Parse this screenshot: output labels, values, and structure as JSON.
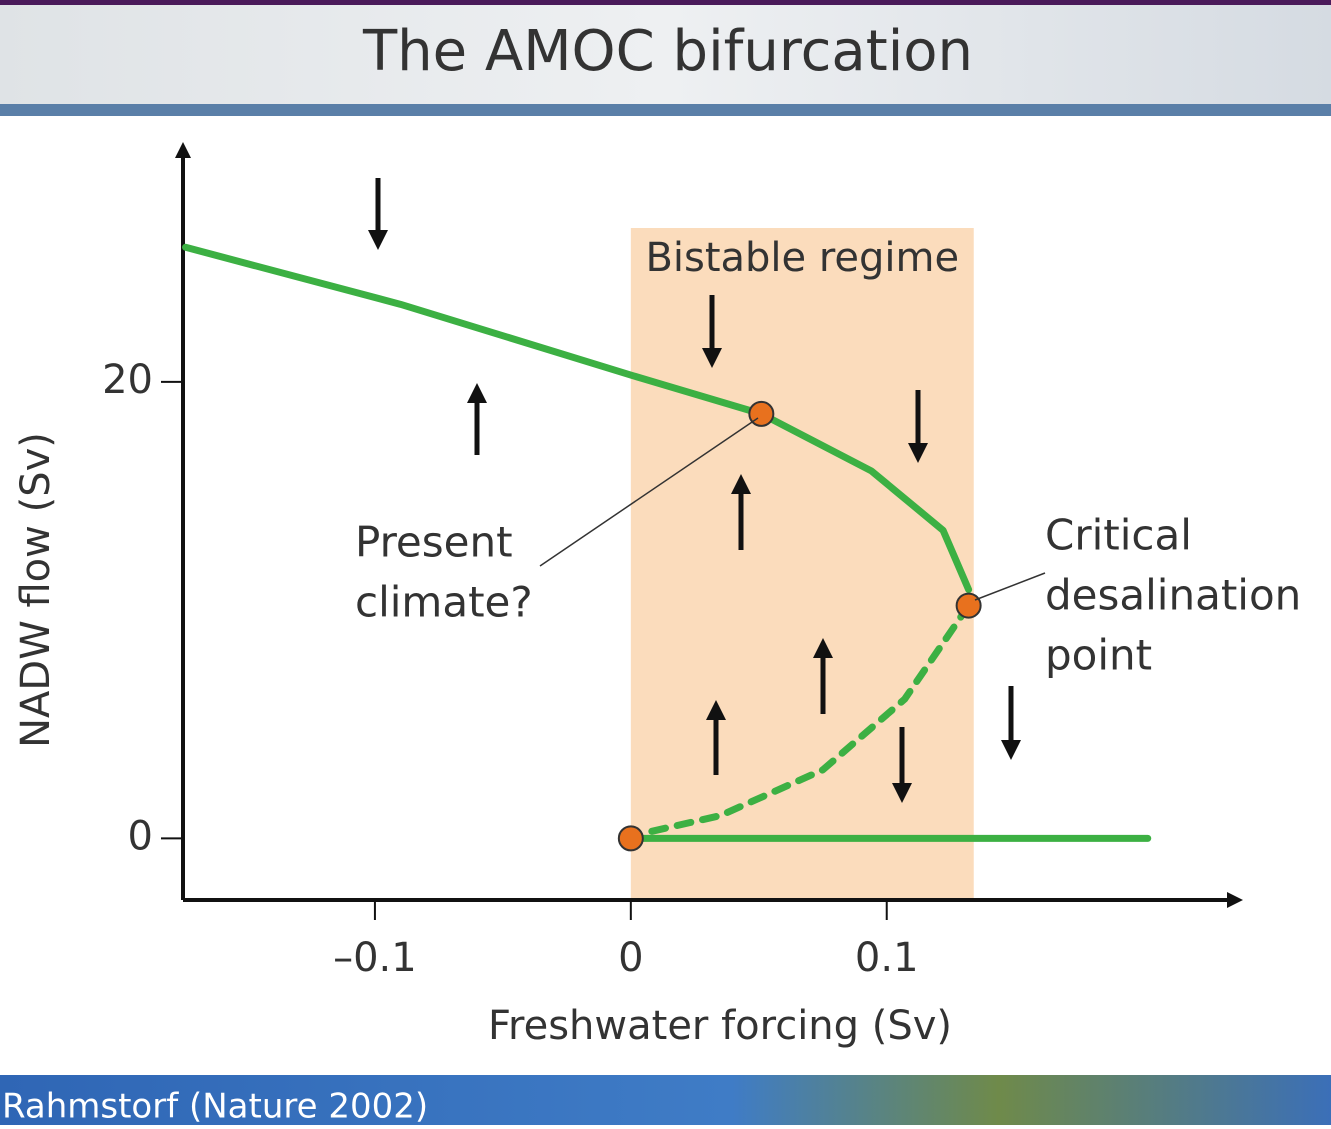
{
  "title": "The AMOC bifurcation",
  "footer": "Rahmstorf (Nature 2002)",
  "chart_data": {
    "type": "line",
    "x_label": "Freshwater forcing (Sv)",
    "y_label": "NADW flow (Sv)",
    "xlim": [
      -0.175,
      0.24
    ],
    "ylim": [
      -2.7,
      30.6
    ],
    "xticks": [
      {
        "value": -0.1,
        "label": "–0.1"
      },
      0,
      0.1
    ],
    "yticks": [
      0,
      20
    ],
    "region": {
      "label": "Bistable regime",
      "x": [
        0,
        0.134
      ],
      "color": "#fbdcbc"
    },
    "series": [
      {
        "color": "#3cb043",
        "style": "solid",
        "x": [
          -0.174,
          -0.09,
          0,
          0.051,
          0.094,
          0.122,
          0.132
        ],
        "values": [
          25.9,
          23.4,
          20.3,
          18.6,
          16.1,
          13.5,
          10.9
        ]
      },
      {
        "color": "#3cb043",
        "style": "dashed",
        "x": [
          0.132,
          0.107,
          0.075,
          0.035,
          0.004
        ],
        "values": [
          10.2,
          6.1,
          3.0,
          1.0,
          0.2
        ]
      },
      {
        "color": "#3cb043",
        "style": "solid",
        "x": [
          0,
          0.202
        ],
        "values": [
          0,
          0
        ]
      }
    ],
    "points": {
      "color": "#e8711e",
      "x": [
        0.051,
        0.132,
        0
      ],
      "values": [
        18.6,
        10.2,
        0
      ]
    },
    "annotations": [
      {
        "lines": [
          "Present",
          "climate?"
        ]
      },
      {
        "lines": [
          "Critical",
          "desalination",
          "point"
        ]
      }
    ]
  }
}
